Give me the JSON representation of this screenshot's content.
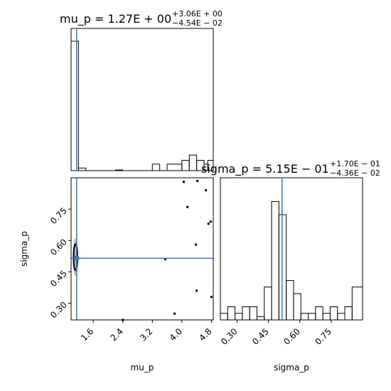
{
  "chart_data": [
    {
      "type": "histogram",
      "panel": "mu_p marginal",
      "title": {
        "prefix": "mu_p = 1.27E + 00",
        "sup": "+3.06E + 00",
        "sub": "−4.54E − 02"
      },
      "xlim": [
        1.0,
        4.85
      ],
      "bins": [
        {
          "x0": 1.0,
          "x1": 1.2,
          "count": 100
        },
        {
          "x0": 1.2,
          "x1": 1.4,
          "count": 2
        },
        {
          "x0": 1.4,
          "x1": 2.2,
          "count": 0
        },
        {
          "x0": 2.2,
          "x1": 2.4,
          "count": 0.5
        },
        {
          "x0": 2.4,
          "x1": 3.2,
          "count": 0
        },
        {
          "x0": 3.2,
          "x1": 3.4,
          "count": 5
        },
        {
          "x0": 3.4,
          "x1": 3.6,
          "count": 0
        },
        {
          "x0": 3.6,
          "x1": 4.0,
          "count": 5
        },
        {
          "x0": 4.0,
          "x1": 4.2,
          "count": 8
        },
        {
          "x0": 4.2,
          "x1": 4.4,
          "count": 12
        },
        {
          "x0": 4.4,
          "x1": 4.6,
          "count": 8
        },
        {
          "x0": 4.6,
          "x1": 4.7,
          "count": 5
        },
        {
          "x0": 4.7,
          "x1": 4.85,
          "count": 8
        }
      ],
      "ylim": [
        0,
        100
      ],
      "truth_line": 1.15
    },
    {
      "type": "scatter",
      "panel": "mu_p vs sigma_p",
      "xlabel": "mu_p",
      "ylabel": "sigma_p",
      "xlim": [
        1.0,
        4.85
      ],
      "ylim": [
        0.22,
        0.9
      ],
      "xticks": [
        "1.6",
        "2.4",
        "3.2",
        "4.0",
        "4.8"
      ],
      "yticks": [
        "0.30",
        "0.45",
        "0.60",
        "0.75"
      ],
      "truth_point": [
        1.15,
        0.515
      ],
      "dense_region": {
        "x": 1.12,
        "y": 0.52,
        "width_x": 0.14,
        "height_y": 0.18
      },
      "points": [
        [
          2.4,
          0.22
        ],
        [
          3.55,
          0.51
        ],
        [
          3.8,
          0.25
        ],
        [
          4.05,
          0.88
        ],
        [
          4.15,
          0.76
        ],
        [
          4.38,
          0.58
        ],
        [
          4.4,
          0.36
        ],
        [
          4.42,
          0.885
        ],
        [
          4.65,
          0.84
        ],
        [
          4.72,
          0.68
        ],
        [
          4.78,
          0.69
        ],
        [
          4.8,
          0.33
        ]
      ]
    },
    {
      "type": "histogram",
      "panel": "sigma_p marginal",
      "title": {
        "prefix": "sigma_p = 5.15E − 01",
        "sup": "+1.70E − 01",
        "sub": "−4.36E − 02"
      },
      "xlabel": "sigma_p",
      "xlim": [
        0.22,
        0.9
      ],
      "xticks": [
        "0.30",
        "0.45",
        "0.60",
        "0.75"
      ],
      "bins": [
        {
          "x0": 0.22,
          "x1": 0.255,
          "count": 1
        },
        {
          "x0": 0.255,
          "x1": 0.29,
          "count": 2
        },
        {
          "x0": 0.29,
          "x1": 0.325,
          "count": 1
        },
        {
          "x0": 0.325,
          "x1": 0.36,
          "count": 2
        },
        {
          "x0": 0.36,
          "x1": 0.395,
          "count": 2
        },
        {
          "x0": 0.395,
          "x1": 0.43,
          "count": 0.5
        },
        {
          "x0": 0.43,
          "x1": 0.465,
          "count": 5
        },
        {
          "x0": 0.465,
          "x1": 0.5,
          "count": 18
        },
        {
          "x0": 0.5,
          "x1": 0.535,
          "count": 16
        },
        {
          "x0": 0.535,
          "x1": 0.57,
          "count": 6
        },
        {
          "x0": 0.57,
          "x1": 0.605,
          "count": 4
        },
        {
          "x0": 0.605,
          "x1": 0.64,
          "count": 1
        },
        {
          "x0": 0.64,
          "x1": 0.675,
          "count": 1
        },
        {
          "x0": 0.675,
          "x1": 0.71,
          "count": 2
        },
        {
          "x0": 0.71,
          "x1": 0.745,
          "count": 1
        },
        {
          "x0": 0.745,
          "x1": 0.78,
          "count": 2
        },
        {
          "x0": 0.78,
          "x1": 0.815,
          "count": 1
        },
        {
          "x0": 0.815,
          "x1": 0.85,
          "count": 2
        },
        {
          "x0": 0.85,
          "x1": 0.9,
          "count": 5
        }
      ],
      "ylim": [
        0,
        20
      ],
      "truth_line": 0.515
    }
  ],
  "colors": {
    "truth": "#3b78b0",
    "hist": "#000000",
    "density": "#7d7d7d",
    "axes": "#000000"
  }
}
